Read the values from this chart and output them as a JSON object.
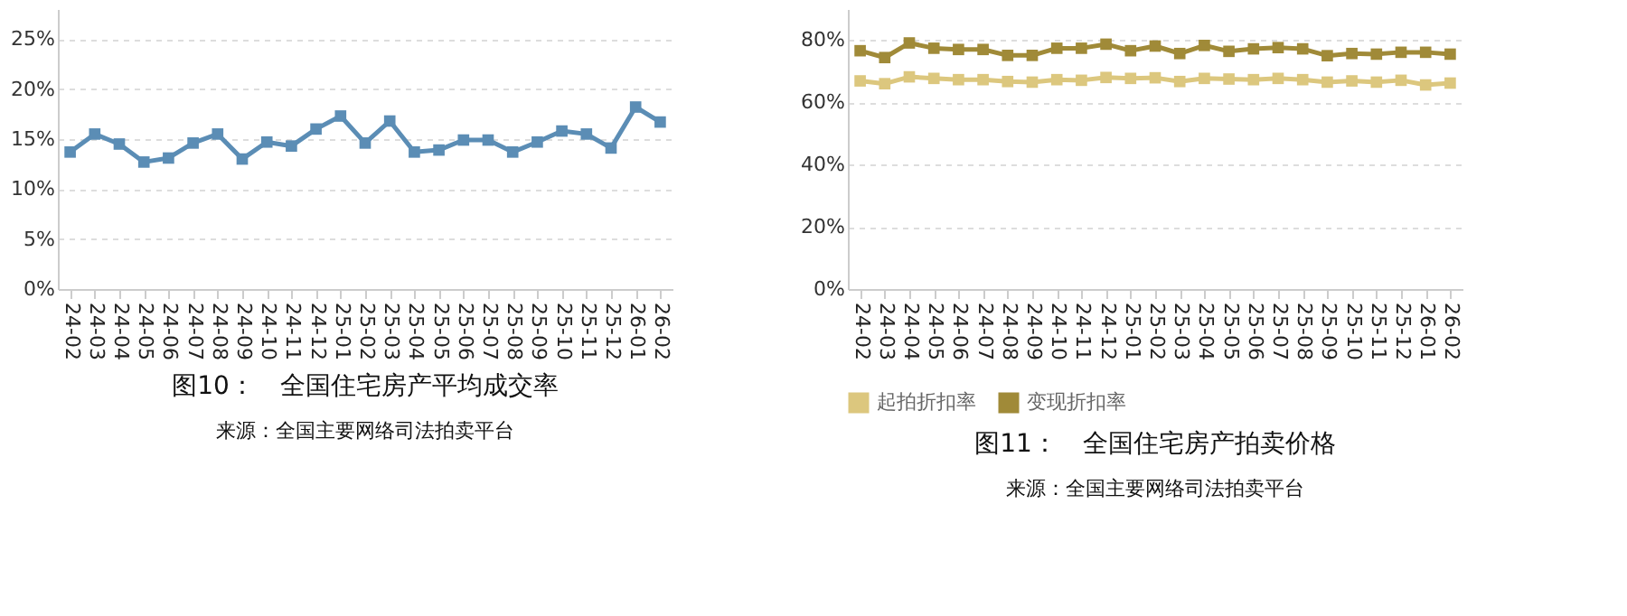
{
  "chart_data": [
    {
      "type": "line",
      "title": "图10：　全国住宅房产平均成交率",
      "annotations": [
        "来源：全国主要网络司法拍卖平台"
      ],
      "categories": [
        "24-02",
        "24-03",
        "24-04",
        "24-05",
        "24-06",
        "24-07",
        "24-08",
        "24-09",
        "24-10",
        "24-11",
        "24-12",
        "25-01",
        "25-02",
        "25-03",
        "25-04",
        "25-05",
        "25-06",
        "25-07",
        "25-08",
        "25-09",
        "25-10",
        "25-11",
        "25-12",
        "26-01",
        "26-02"
      ],
      "series": [
        {
          "color": "#5b8db5",
          "values": [
            13.7,
            15.5,
            14.5,
            12.7,
            13.1,
            14.6,
            15.5,
            13.0,
            14.7,
            14.3,
            16.0,
            17.3,
            14.6,
            16.8,
            13.7,
            13.9,
            14.9,
            14.9,
            13.7,
            14.7,
            15.8,
            15.5,
            14.1,
            18.2,
            16.7
          ]
        }
      ],
      "ylim": [
        0,
        28
      ],
      "yticks": [
        {
          "value": 0,
          "label": "0%"
        },
        {
          "value": 5,
          "label": "5%"
        },
        {
          "value": 10,
          "label": "10%"
        },
        {
          "value": 15,
          "label": "15%"
        },
        {
          "value": 20,
          "label": "20%"
        },
        {
          "value": 25,
          "label": "25%"
        }
      ],
      "grid": "y",
      "marker": "square",
      "line_style": "solid"
    },
    {
      "type": "line",
      "title": "图11：　全国住宅房产拍卖价格",
      "annotations": [
        "来源：全国主要网络司法拍卖平台"
      ],
      "categories": [
        "24-02",
        "24-03",
        "24-04",
        "24-05",
        "24-06",
        "24-07",
        "24-08",
        "24-09",
        "24-10",
        "24-11",
        "24-12",
        "25-01",
        "25-02",
        "25-03",
        "25-04",
        "25-05",
        "25-06",
        "25-07",
        "25-08",
        "25-09",
        "25-10",
        "25-11",
        "25-12",
        "26-01",
        "26-02"
      ],
      "series": [
        {
          "name": "起拍折扣率",
          "color": "#dcc77e",
          "values": [
            66.9,
            66.0,
            68.2,
            67.7,
            67.3,
            67.3,
            66.7,
            66.5,
            67.3,
            67.1,
            68.0,
            67.7,
            67.9,
            66.7,
            67.7,
            67.5,
            67.3,
            67.7,
            67.3,
            66.5,
            66.9,
            66.5,
            67.1,
            65.6,
            66.2
          ]
        },
        {
          "name": "变现折扣率",
          "color": "#a08a38",
          "values": [
            76.6,
            74.4,
            79.1,
            77.4,
            77.0,
            77.0,
            75.1,
            75.1,
            77.4,
            77.4,
            78.7,
            76.6,
            78.1,
            75.7,
            78.3,
            76.4,
            77.2,
            77.6,
            77.2,
            75.0,
            75.7,
            75.5,
            76.1,
            76.1,
            75.5
          ]
        }
      ],
      "ylim": [
        0,
        90
      ],
      "yticks": [
        {
          "value": 0,
          "label": "0%"
        },
        {
          "value": 20,
          "label": "20%"
        },
        {
          "value": 40,
          "label": "40%"
        },
        {
          "value": 60,
          "label": "60%"
        },
        {
          "value": 80,
          "label": "80%"
        }
      ],
      "grid": "y",
      "marker": "square",
      "line_style": "solid",
      "legend": "bottom"
    }
  ]
}
